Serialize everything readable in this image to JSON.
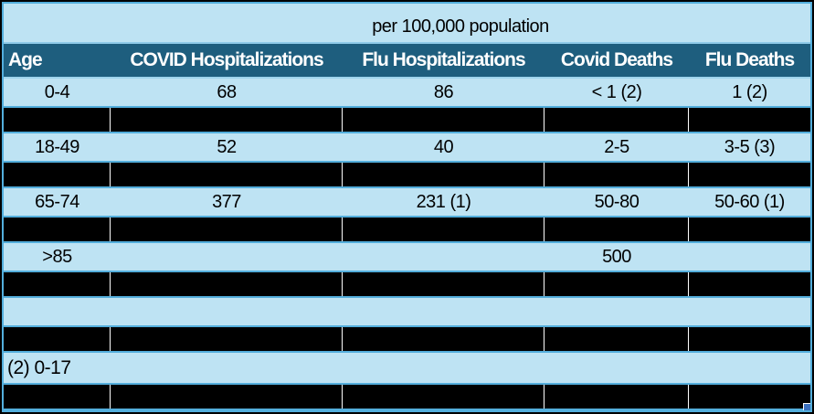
{
  "title": "per 100,000 population",
  "colors": {
    "header_teal": "#1E5E7E",
    "row_light_blue": "#BEE3F3",
    "gridline_cyan": "#53AEDC",
    "redacted_black": "#000000",
    "separator_white": "#FFFFFF",
    "fill_handle_blue": "#3A6FBE"
  },
  "table": {
    "columns": [
      "Age",
      "COVID Hospitalizations",
      "Flu Hospitalizations",
      "Covid Deaths",
      "Flu Deaths"
    ],
    "rows": [
      {
        "type": "data",
        "cells": [
          "0-4",
          "68",
          "86",
          "< 1 (2)",
          "1 (2)"
        ]
      },
      {
        "type": "redacted"
      },
      {
        "type": "data",
        "cells": [
          "18-49",
          "52",
          "40",
          "2-5",
          "3-5 (3)"
        ]
      },
      {
        "type": "redacted"
      },
      {
        "type": "data",
        "cells": [
          "65-74",
          "377",
          "231 (1)",
          "50-80",
          "50-60 (1)"
        ]
      },
      {
        "type": "redacted"
      },
      {
        "type": "data",
        "cells": [
          ">85",
          "",
          "",
          "500",
          ""
        ]
      },
      {
        "type": "redacted"
      },
      {
        "type": "empty"
      },
      {
        "type": "redacted"
      },
      {
        "type": "footnote",
        "text": "(2) 0-17"
      },
      {
        "type": "redacted"
      }
    ]
  }
}
